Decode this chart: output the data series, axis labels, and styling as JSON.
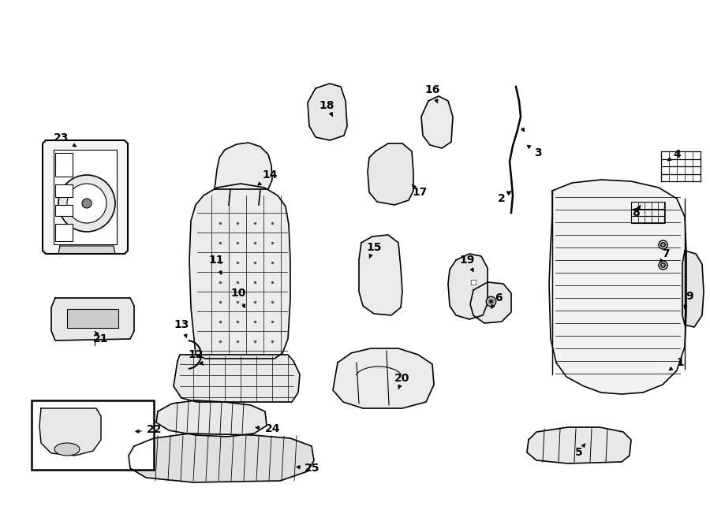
{
  "bg_color": "#ffffff",
  "line_color": "#000000",
  "fig_width": 9.0,
  "fig_height": 6.61,
  "dpi": 100
}
